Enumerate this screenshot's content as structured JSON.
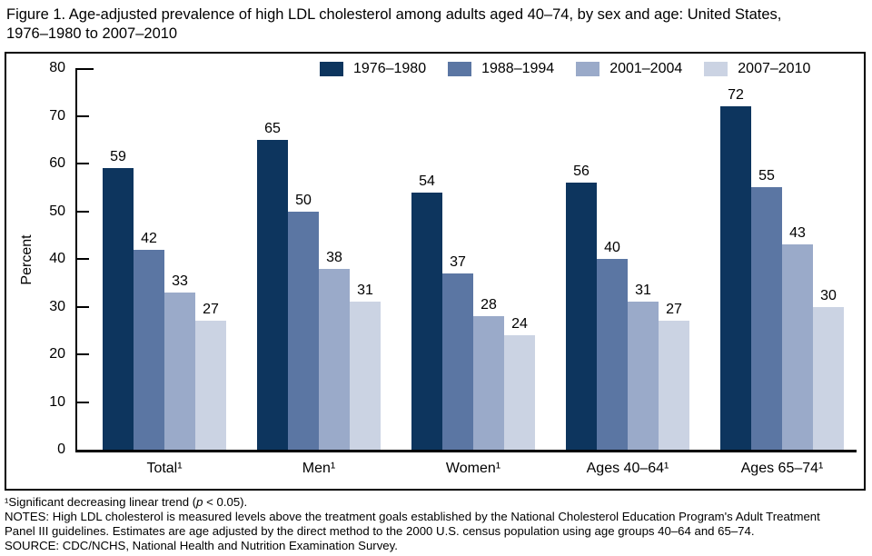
{
  "title": {
    "line1": "Figure 1. Age-adjusted prevalence of high LDL cholesterol among adults aged 40–74, by sex and age: United States,",
    "line2": "1976–1980 to 2007–2010"
  },
  "chart_data": {
    "type": "bar",
    "categories": [
      "Total¹",
      "Men¹",
      "Women¹",
      "Ages 40–64¹",
      "Ages 65–74¹"
    ],
    "series": [
      {
        "name": "1976–1980",
        "color": "#0d355e",
        "values": [
          59,
          65,
          54,
          56,
          72
        ]
      },
      {
        "name": "1988–1994",
        "color": "#5b76a3",
        "values": [
          42,
          50,
          37,
          40,
          55
        ]
      },
      {
        "name": "2001–2004",
        "color": "#9aaac9",
        "values": [
          33,
          38,
          28,
          31,
          43
        ]
      },
      {
        "name": "2007–2010",
        "color": "#cbd3e3",
        "values": [
          27,
          31,
          24,
          27,
          30
        ]
      }
    ],
    "ylabel": "Percent",
    "xlabel": "",
    "ylim": [
      0,
      80
    ],
    "yticks": [
      0,
      10,
      20,
      30,
      40,
      50,
      60,
      70,
      80
    ],
    "legend_position": "top",
    "grid": false,
    "axis_color": "#000000"
  },
  "footnotes": {
    "fn1_pre": "¹Significant decreasing linear trend (",
    "fn1_italic": "p",
    "fn1_post": " < 0.05).",
    "notes_line1": "NOTES: High LDL cholesterol is measured levels above the treatment goals established by the National Cholesterol Education Program's Adult Treatment",
    "notes_line2": "Panel III guidelines. Estimates are age adjusted by the direct method to the 2000 U.S. census population using age groups 40–64 and 65–74.",
    "source": "SOURCE: CDC/NCHS, National Health and Nutrition Examination Survey."
  }
}
